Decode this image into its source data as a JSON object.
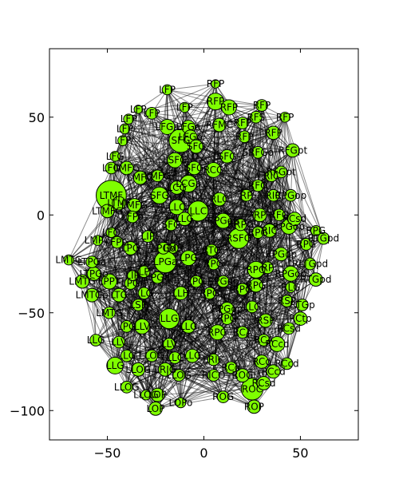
{
  "chart_data": {
    "type": "scatter",
    "title": "",
    "xlabel": "",
    "ylabel": "",
    "xlim": [
      -80,
      80
    ],
    "ylim": [
      -115,
      85
    ],
    "xticks": [
      "−50",
      "0",
      "50"
    ],
    "xtick_values": [
      -50,
      0,
      50
    ],
    "yticks": [
      "50",
      "0",
      "−50",
      "−100"
    ],
    "ytick_values": [
      50,
      0,
      -50,
      -100
    ],
    "grid": false,
    "legend": "none",
    "colors": {
      "node_fill": "#7fff00",
      "node_edge": "#000000",
      "edge": "#000000"
    },
    "nodes": [
      {
        "label": "LFP",
        "x": -19,
        "y": 64,
        "size": 6
      },
      {
        "label": "RFP",
        "x": 6,
        "y": 67,
        "size": 5
      },
      {
        "label": "RFP",
        "x": 6,
        "y": 58,
        "size": 10
      },
      {
        "label": "RFP",
        "x": 13,
        "y": 55,
        "size": 9
      },
      {
        "label": "RFP",
        "x": 30,
        "y": 56,
        "size": 7
      },
      {
        "label": "RFP",
        "x": 42,
        "y": 50,
        "size": 6
      },
      {
        "label": "RFP",
        "x": 36,
        "y": 42,
        "size": 8
      },
      {
        "label": "LFP",
        "x": -34,
        "y": 54,
        "size": 5
      },
      {
        "label": "LFP",
        "x": -39,
        "y": 49,
        "size": 6
      },
      {
        "label": "LFP",
        "x": -27,
        "y": 52,
        "size": 7
      },
      {
        "label": "LFP",
        "x": -41,
        "y": 44,
        "size": 6
      },
      {
        "label": "LFP",
        "x": -42,
        "y": 38,
        "size": 6
      },
      {
        "label": "LFP",
        "x": -10,
        "y": 55,
        "size": 6
      },
      {
        "label": "LFGa",
        "x": -19,
        "y": 45,
        "size": 9
      },
      {
        "label": "LFGa",
        "x": -8,
        "y": 45,
        "size": 8
      },
      {
        "label": "LFGo",
        "x": -7,
        "y": 40,
        "size": 8
      },
      {
        "label": "RFMC",
        "x": 8,
        "y": 46,
        "size": 8
      },
      {
        "label": "RFS",
        "x": 27,
        "y": 50,
        "size": 7
      },
      {
        "label": "RFP",
        "x": 21,
        "y": 40,
        "size": 7
      },
      {
        "label": "RFP",
        "x": 20,
        "y": 47,
        "size": 7
      },
      {
        "label": "SFG",
        "x": -12,
        "y": 38,
        "size": 14
      },
      {
        "label": "SFG",
        "x": -4,
        "y": 35,
        "size": 8
      },
      {
        "label": "SFG",
        "x": 12,
        "y": 30,
        "size": 8
      },
      {
        "label": "SRFGo",
        "x": 28,
        "y": 32,
        "size": 7
      },
      {
        "label": "RFGpt",
        "x": 46,
        "y": 33,
        "size": 8
      },
      {
        "label": "LFG",
        "x": -46,
        "y": 30,
        "size": 6
      },
      {
        "label": "LFO",
        "x": -48,
        "y": 24,
        "size": 7
      },
      {
        "label": "LMFG",
        "x": -40,
        "y": 24,
        "size": 8
      },
      {
        "label": "LSFG",
        "x": -15,
        "y": 28,
        "size": 9
      },
      {
        "label": "SFG",
        "x": -5,
        "y": 24,
        "size": 8
      },
      {
        "label": "RCG",
        "x": 5,
        "y": 23,
        "size": 9
      },
      {
        "label": "RFGpt",
        "x": 40,
        "y": 22,
        "size": 7
      },
      {
        "label": "RIC",
        "x": 35,
        "y": 20,
        "size": 7
      },
      {
        "label": "LMFG",
        "x": -33,
        "y": 19,
        "size": 8
      },
      {
        "label": "LMFG",
        "x": -24,
        "y": 20,
        "size": 7
      },
      {
        "label": "LCGa",
        "x": -8,
        "y": 16,
        "size": 10
      },
      {
        "label": "LCG",
        "x": -14,
        "y": 14,
        "size": 8
      },
      {
        "label": "RFO",
        "x": 28,
        "y": 15,
        "size": 7
      },
      {
        "label": "RIC",
        "x": 36,
        "y": 10,
        "size": 7
      },
      {
        "label": "RPGop",
        "x": 45,
        "y": 10,
        "size": 7
      },
      {
        "label": "LTMF",
        "x": -48,
        "y": 10,
        "size": 18
      },
      {
        "label": "LTMF",
        "x": -44,
        "y": 6,
        "size": 8
      },
      {
        "label": "SFG",
        "x": -23,
        "y": 10,
        "size": 10
      },
      {
        "label": "RLC",
        "x": 8,
        "y": 8,
        "size": 8
      },
      {
        "label": "RP",
        "x": 22,
        "y": 10,
        "size": 7
      },
      {
        "label": "LMFG",
        "x": -36,
        "y": 5,
        "size": 8
      },
      {
        "label": "LTMFG",
        "x": -50,
        "y": 2,
        "size": 8
      },
      {
        "label": "LLC",
        "x": -14,
        "y": 4,
        "size": 9
      },
      {
        "label": "LLC",
        "x": -3,
        "y": 2,
        "size": 12
      },
      {
        "label": "RP",
        "x": 29,
        "y": 0,
        "size": 8
      },
      {
        "label": "RFO",
        "x": 39,
        "y": 0,
        "size": 7
      },
      {
        "label": "RCsd",
        "x": 47,
        "y": -2,
        "size": 8
      },
      {
        "label": "LFPo",
        "x": -37,
        "y": -1,
        "size": 7
      },
      {
        "label": "LLG",
        "x": -10,
        "y": -2,
        "size": 8
      },
      {
        "label": "RPGop",
        "x": 10,
        "y": -3,
        "size": 9
      },
      {
        "label": "RRPG",
        "x": 19,
        "y": -5,
        "size": 7
      },
      {
        "label": "SFG",
        "x": -17,
        "y": -5,
        "size": 7
      },
      {
        "label": "RPGop",
        "x": 44,
        "y": -6,
        "size": 9
      },
      {
        "label": "RPG",
        "x": 58,
        "y": -8,
        "size": 6
      },
      {
        "label": "LFO",
        "x": -48,
        "y": -9,
        "size": 6
      },
      {
        "label": "RIC",
        "x": 34,
        "y": -8,
        "size": 8
      },
      {
        "label": "RPG",
        "x": 28,
        "y": -9,
        "size": 7
      },
      {
        "label": "RTGpd",
        "x": 62,
        "y": -12,
        "size": 7
      },
      {
        "label": "LMPG",
        "x": -55,
        "y": -13,
        "size": 6
      },
      {
        "label": "LFPG",
        "x": -45,
        "y": -14,
        "size": 7
      },
      {
        "label": "LIP",
        "x": -29,
        "y": -11,
        "size": 7
      },
      {
        "label": "RSFG",
        "x": 18,
        "y": -12,
        "size": 12
      },
      {
        "label": "RPG",
        "x": 53,
        "y": -15,
        "size": 7
      },
      {
        "label": "LPG",
        "x": -38,
        "y": -17,
        "size": 8
      },
      {
        "label": "LPGo",
        "x": -21,
        "y": -17,
        "size": 7
      },
      {
        "label": "LMS",
        "x": -16,
        "y": -17,
        "size": 6
      },
      {
        "label": "RTG",
        "x": 4,
        "y": -18,
        "size": 7
      },
      {
        "label": "RPGop",
        "x": 40,
        "y": -20,
        "size": 8
      },
      {
        "label": "LMTG",
        "x": -70,
        "y": -23,
        "size": 6
      },
      {
        "label": "LTPGa",
        "x": -58,
        "y": -24,
        "size": 7
      },
      {
        "label": "LPGa",
        "x": -20,
        "y": -24,
        "size": 13
      },
      {
        "label": "LPG",
        "x": -8,
        "y": -22,
        "size": 9
      },
      {
        "label": "RPG",
        "x": 5,
        "y": -25,
        "size": 7
      },
      {
        "label": "RLTGpd",
        "x": 55,
        "y": -25,
        "size": 7
      },
      {
        "label": "LTPGo",
        "x": -57,
        "y": -30,
        "size": 8
      },
      {
        "label": "LP",
        "x": -31,
        "y": -29,
        "size": 7
      },
      {
        "label": "LIP",
        "x": -37,
        "y": -31,
        "size": 6
      },
      {
        "label": "RPO",
        "x": 27,
        "y": -28,
        "size": 10
      },
      {
        "label": "RP",
        "x": 33,
        "y": -27,
        "size": 7
      },
      {
        "label": "RPGop",
        "x": 45,
        "y": -30,
        "size": 9
      },
      {
        "label": "LMTG",
        "x": -63,
        "y": -34,
        "size": 8
      },
      {
        "label": "LPPT",
        "x": -49,
        "y": -34,
        "size": 9
      },
      {
        "label": "LPG",
        "x": -38,
        "y": -35,
        "size": 7
      },
      {
        "label": "LPGa",
        "x": -24,
        "y": -32,
        "size": 7
      },
      {
        "label": "LPG",
        "x": -4,
        "y": -34,
        "size": 7
      },
      {
        "label": "RPGop",
        "x": 10,
        "y": -34,
        "size": 7
      },
      {
        "label": "RTGpd",
        "x": 58,
        "y": -33,
        "size": 8
      },
      {
        "label": "RPG",
        "x": 20,
        "y": -38,
        "size": 7
      },
      {
        "label": "RPG",
        "x": 27,
        "y": -36,
        "size": 8
      },
      {
        "label": "RLG",
        "x": 45,
        "y": -37,
        "size": 6
      },
      {
        "label": "LTG",
        "x": -44,
        "y": -41,
        "size": 8
      },
      {
        "label": "LMTGp",
        "x": -58,
        "y": -41,
        "size": 8
      },
      {
        "label": "LLG",
        "x": -31,
        "y": -40,
        "size": 7
      },
      {
        "label": "LLH",
        "x": -12,
        "y": -40,
        "size": 8
      },
      {
        "label": "RPG",
        "x": 3,
        "y": -40,
        "size": 7
      },
      {
        "label": "RSP",
        "x": 43,
        "y": -44,
        "size": 7
      },
      {
        "label": "LSP",
        "x": -34,
        "y": -46,
        "size": 7
      },
      {
        "label": "RPGop",
        "x": 12,
        "y": -48,
        "size": 8
      },
      {
        "label": "LLG",
        "x": 25,
        "y": -47,
        "size": 7
      },
      {
        "label": "RTGp",
        "x": 51,
        "y": -46,
        "size": 7
      },
      {
        "label": "LMTG",
        "x": -49,
        "y": -50,
        "size": 7
      },
      {
        "label": "LLG",
        "x": -18,
        "y": -53,
        "size": 12
      },
      {
        "label": "LLG",
        "x": -8,
        "y": -57,
        "size": 8
      },
      {
        "label": "RPG",
        "x": 12,
        "y": -53,
        "size": 7
      },
      {
        "label": "RSP",
        "x": 32,
        "y": -54,
        "size": 8
      },
      {
        "label": "RCtp",
        "x": 50,
        "y": -53,
        "size": 8
      },
      {
        "label": "LLV",
        "x": -32,
        "y": -57,
        "size": 9
      },
      {
        "label": "LPG",
        "x": -40,
        "y": -57,
        "size": 7
      },
      {
        "label": "RPG",
        "x": 7,
        "y": -60,
        "size": 9
      },
      {
        "label": "RCA",
        "x": 20,
        "y": -60,
        "size": 7
      },
      {
        "label": "RCsd",
        "x": 44,
        "y": -58,
        "size": 7
      },
      {
        "label": "LLG",
        "x": -56,
        "y": -64,
        "size": 7
      },
      {
        "label": "LLV",
        "x": -44,
        "y": -65,
        "size": 7
      },
      {
        "label": "LLV",
        "x": -18,
        "y": -66,
        "size": 7
      },
      {
        "label": "RCA",
        "x": 31,
        "y": -64,
        "size": 7
      },
      {
        "label": "RCcd",
        "x": 38,
        "y": -66,
        "size": 9
      },
      {
        "label": "LLG",
        "x": -40,
        "y": -72,
        "size": 7
      },
      {
        "label": "LLOG",
        "x": -27,
        "y": -72,
        "size": 7
      },
      {
        "label": "LLC",
        "x": -15,
        "y": -73,
        "size": 7
      },
      {
        "label": "LLG",
        "x": -6,
        "y": -72,
        "size": 8
      },
      {
        "label": "LRIC",
        "x": 5,
        "y": -74,
        "size": 7
      },
      {
        "label": "RCd",
        "x": 30,
        "y": -75,
        "size": 8
      },
      {
        "label": "RCcd",
        "x": 43,
        "y": -76,
        "size": 7
      },
      {
        "label": "LLG",
        "x": -46,
        "y": -77,
        "size": 10
      },
      {
        "label": "LLOG",
        "x": -34,
        "y": -79,
        "size": 8
      },
      {
        "label": "LRIG",
        "x": -20,
        "y": -79,
        "size": 8
      },
      {
        "label": "RCd",
        "x": 14,
        "y": -78,
        "size": 7
      },
      {
        "label": "RCcd",
        "x": 36,
        "y": -80,
        "size": 8
      },
      {
        "label": "LLOG",
        "x": -13,
        "y": -82,
        "size": 7
      },
      {
        "label": "RICO",
        "x": 5,
        "y": -82,
        "size": 7
      },
      {
        "label": "ROG",
        "x": 20,
        "y": -82,
        "size": 8
      },
      {
        "label": "RCsd",
        "x": 31,
        "y": -86,
        "size": 8
      },
      {
        "label": "LLOG",
        "x": -40,
        "y": -88,
        "size": 7
      },
      {
        "label": "LLOG",
        "x": -30,
        "y": -92,
        "size": 6
      },
      {
        "label": "ROC",
        "x": 25,
        "y": -89,
        "size": 13
      },
      {
        "label": "ROG",
        "x": 10,
        "y": -93,
        "size": 7
      },
      {
        "label": "LOP",
        "x": -24,
        "y": -92,
        "size": 8
      },
      {
        "label": "LOPo",
        "x": -12,
        "y": -96,
        "size": 6
      },
      {
        "label": "LOP",
        "x": -25,
        "y": -99,
        "size": 8
      },
      {
        "label": "ROP",
        "x": 26,
        "y": -98,
        "size": 8
      }
    ]
  }
}
